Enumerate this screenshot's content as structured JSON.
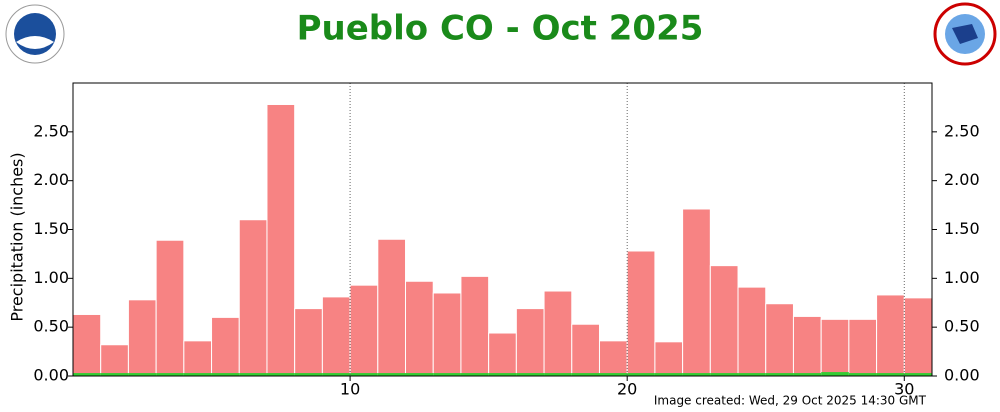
{
  "chart_data": {
    "type": "bar",
    "title": "Pueblo CO - Oct 2025",
    "y_label": "Precipitation (inches)",
    "footer": "Image created: Wed, 29 Oct 2025 14:30 GMT",
    "x": [
      1,
      2,
      3,
      4,
      5,
      6,
      7,
      8,
      9,
      10,
      11,
      12,
      13,
      14,
      15,
      16,
      17,
      18,
      19,
      20,
      21,
      22,
      23,
      24,
      25,
      26,
      27,
      28,
      29,
      30,
      31
    ],
    "series": [
      {
        "color": "#f78383",
        "values": [
          0.63,
          0.32,
          0.78,
          1.39,
          0.36,
          0.6,
          1.6,
          2.78,
          0.69,
          0.81,
          0.93,
          1.4,
          0.97,
          0.85,
          1.02,
          0.44,
          0.69,
          0.87,
          0.53,
          0.36,
          1.28,
          0.35,
          1.71,
          1.13,
          0.91,
          0.74,
          0.61,
          0.58,
          0.58,
          0.83,
          0.8
        ]
      },
      {
        "color": "#33cc33",
        "values": [
          0.03,
          0.03,
          0.03,
          0.03,
          0.03,
          0.03,
          0.03,
          0.03,
          0.03,
          0.03,
          0.03,
          0.03,
          0.03,
          0.03,
          0.03,
          0.03,
          0.03,
          0.03,
          0.03,
          0.03,
          0.03,
          0.03,
          0.03,
          0.03,
          0.03,
          0.03,
          0.03,
          0.04,
          0.03,
          0.03,
          0.03
        ]
      }
    ],
    "xlim": [
      0,
      31
    ],
    "xticks": [
      10,
      20,
      30
    ],
    "ylim": [
      0,
      3
    ],
    "yticks": [
      {
        "value": 0,
        "label": "0.00"
      },
      {
        "value": 0.5,
        "label": "0.50"
      },
      {
        "value": 1,
        "label": "1.00"
      },
      {
        "value": 1.5,
        "label": "1.50"
      },
      {
        "value": 2,
        "label": "2.00"
      },
      {
        "value": 2.5,
        "label": "2.50"
      }
    ],
    "grid": "x"
  }
}
